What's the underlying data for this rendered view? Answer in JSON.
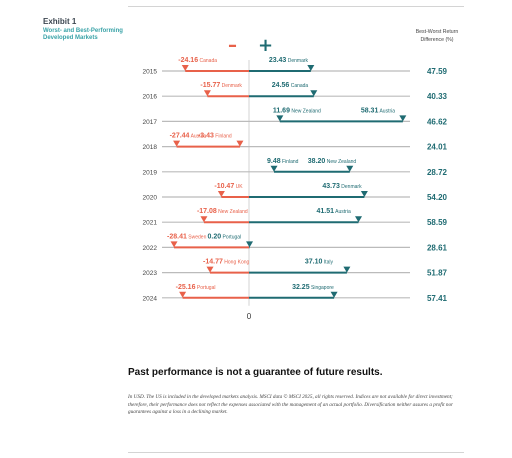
{
  "header": {
    "exhibit_label": "Exhibit 1",
    "title": "Worst- and Best-Performing Developed Markets",
    "column_header": "Best-Worst Return Difference (%)",
    "minus_sign": "–",
    "plus_sign": "+"
  },
  "chart_data": {
    "type": "range-bar",
    "title": "Worst- and Best-Performing Developed Markets",
    "diff_header": "Best-Worst Return Difference (%)",
    "zero_label": "0",
    "xlim": [
      -31,
      63
    ],
    "colors": {
      "negative": "#e8614a",
      "positive": "#1f6b72",
      "axis": "#bbbbbb",
      "zero": "#c8c8c8",
      "label": "#444444"
    },
    "rows": [
      {
        "year": "2015",
        "worst": {
          "value": -24.16,
          "label": "-24.16",
          "country": "Canada"
        },
        "best": {
          "value": 23.43,
          "label": "23.43",
          "country": "Denmark"
        },
        "diff": "47.59"
      },
      {
        "year": "2016",
        "worst": {
          "value": -15.77,
          "label": "-15.77",
          "country": "Denmark"
        },
        "best": {
          "value": 24.56,
          "label": "24.56",
          "country": "Canada"
        },
        "diff": "40.33"
      },
      {
        "year": "2017",
        "worst": {
          "value": 11.69,
          "label": "11.69",
          "country": "New Zealand"
        },
        "best": {
          "value": 58.31,
          "label": "58.31",
          "country": "Austria"
        },
        "diff": "46.62"
      },
      {
        "year": "2018",
        "worst": {
          "value": -27.44,
          "label": "-27.44",
          "country": "Austria"
        },
        "best": {
          "value": -3.43,
          "label": "-3.43",
          "country": "Finland"
        },
        "diff": "24.01"
      },
      {
        "year": "2019",
        "worst": {
          "value": 9.48,
          "label": "9.48",
          "country": "Finland"
        },
        "best": {
          "value": 38.2,
          "label": "38.20",
          "country": "New Zealand"
        },
        "diff": "28.72"
      },
      {
        "year": "2020",
        "worst": {
          "value": -10.47,
          "label": "-10.47",
          "country": "UK"
        },
        "best": {
          "value": 43.73,
          "label": "43.73",
          "country": "Denmark"
        },
        "diff": "54.20"
      },
      {
        "year": "2021",
        "worst": {
          "value": -17.08,
          "label": "-17.08",
          "country": "New Zealand"
        },
        "best": {
          "value": 41.51,
          "label": "41.51",
          "country": "Austria"
        },
        "diff": "58.59"
      },
      {
        "year": "2022",
        "worst": {
          "value": -28.41,
          "label": "-28.41",
          "country": "Sweden"
        },
        "best": {
          "value": 0.2,
          "label": "0.20",
          "country": "Portugal"
        },
        "diff": "28.61"
      },
      {
        "year": "2023",
        "worst": {
          "value": -14.77,
          "label": "-14.77",
          "country": "Hong Kong"
        },
        "best": {
          "value": 37.1,
          "label": "37.10",
          "country": "Italy"
        },
        "diff": "51.87"
      },
      {
        "year": "2024",
        "worst": {
          "value": -25.16,
          "label": "-25.16",
          "country": "Portugal"
        },
        "best": {
          "value": 32.25,
          "label": "32.25",
          "country": "Singapore"
        },
        "diff": "57.41"
      }
    ]
  },
  "disclaimer": {
    "heading": "Past performance is not a guarantee of future results.",
    "footnote": "In USD. The US is included in the developed markets analysis. MSCI data © MSCI 2025, all rights reserved. Indices are not available for direct investment; therefore, their performance does not reflect the expenses associated with the management of an actual portfolio. Diversification neither assures a profit nor guarantees against a loss in a declining market."
  }
}
